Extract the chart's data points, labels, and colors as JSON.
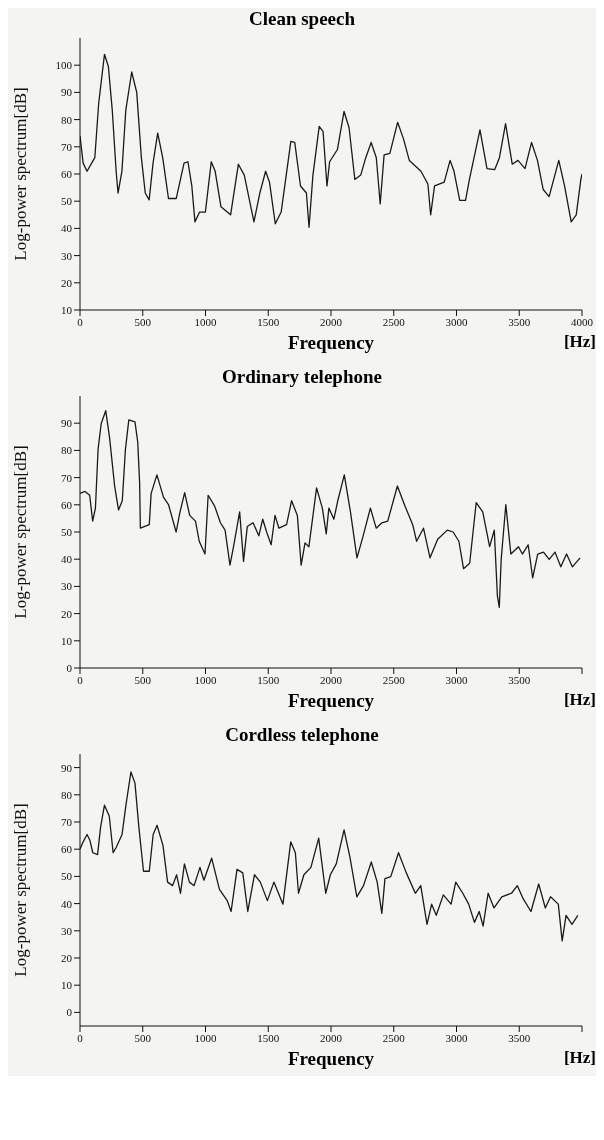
{
  "chart_data": [
    {
      "type": "line",
      "title": "Clean speech",
      "xlabel": "Frequency",
      "ylabel": "Log-power spectrum[dB]",
      "annotations": [
        "[Hz]"
      ],
      "marker": "none",
      "line_style": "solid",
      "grid": false,
      "xlim": [
        0,
        4000
      ],
      "xticks": [
        0,
        500,
        1000,
        1500,
        2000,
        2500,
        3000,
        3500,
        4000
      ],
      "ylim": [
        10,
        110
      ],
      "yticks": [
        10,
        20,
        30,
        40,
        50,
        60,
        70,
        80,
        90,
        100
      ],
      "series": [
        {
          "color": "#1a1a1a",
          "x": [
            0,
            25,
            56,
            93,
            118,
            149,
            195,
            226,
            257,
            288,
            303,
            334,
            365,
            412,
            452,
            489,
            520,
            551,
            582,
            619,
            659,
            705,
            767,
            829,
            860,
            891,
            916,
            953,
            999,
            1046,
            1077,
            1123,
            1200,
            1262,
            1309,
            1386,
            1433,
            1479,
            1510,
            1556,
            1603,
            1680,
            1711,
            1757,
            1804,
            1825,
            1856,
            1906,
            1937,
            1968,
            1989,
            2051,
            2104,
            2144,
            2190,
            2237,
            2277,
            2320,
            2361,
            2392,
            2423,
            2469,
            2531,
            2577,
            2624,
            2717,
            2772,
            2794,
            2825,
            2902,
            2949,
            2980,
            3026,
            3072,
            3103,
            3187,
            3243,
            3304,
            3342,
            3391,
            3444,
            3490,
            3546,
            3598,
            3645,
            3691,
            3738,
            3815,
            3861,
            3914,
            3954,
            3991,
            4000
          ],
          "values": [
            74,
            64,
            61,
            64,
            66,
            86,
            104,
            99.5,
            83.5,
            61,
            53,
            61,
            83.5,
            97.5,
            90,
            66,
            53,
            50.5,
            64,
            75,
            66,
            51,
            51,
            64,
            64.5,
            55.6,
            42.4,
            46,
            46,
            64.5,
            61,
            48,
            45,
            63.6,
            59.6,
            42.4,
            53,
            61,
            57,
            41.7,
            46,
            72,
            71.6,
            55.6,
            53,
            40.4,
            59.6,
            77.5,
            75.6,
            55.6,
            64.5,
            69,
            83,
            77,
            58,
            59.6,
            66,
            71.6,
            66,
            49,
            67,
            67.6,
            79,
            73,
            65,
            61,
            56.3,
            45,
            55.6,
            57,
            65,
            61,
            50.3,
            50.3,
            58,
            76.2,
            62,
            61.6,
            66,
            78.5,
            63.6,
            65,
            62,
            71.6,
            65,
            54.3,
            51.7,
            65,
            55.6,
            42.4,
            45,
            58,
            60
          ]
        }
      ]
    },
    {
      "type": "line",
      "title": "Ordinary telephone",
      "xlabel": "Frequency",
      "ylabel": "Log-power spectrum[dB]",
      "annotations": [
        "[Hz]"
      ],
      "marker": "none",
      "line_style": "solid",
      "grid": false,
      "xlim": [
        0,
        4000
      ],
      "xticks": [
        0,
        500,
        1000,
        1500,
        2000,
        2500,
        3000,
        3500,
        {
          "value": 4000,
          "label": null
        }
      ],
      "ylim": [
        0,
        100
      ],
      "yticks": [
        0,
        10,
        20,
        30,
        40,
        50,
        60,
        70,
        80,
        90
      ],
      "series": [
        {
          "color": "#1a1a1a",
          "x": [
            0,
            40,
            77,
            101,
            123,
            144,
            169,
            205,
            236,
            276,
            307,
            337,
            362,
            389,
            438,
            460,
            475,
            481,
            552,
            567,
            613,
            665,
            705,
            766,
            797,
            834,
            874,
            920,
            950,
            996,
            1021,
            1073,
            1119,
            1156,
            1195,
            1226,
            1272,
            1303,
            1333,
            1379,
            1425,
            1456,
            1487,
            1523,
            1554,
            1585,
            1646,
            1686,
            1732,
            1762,
            1793,
            1824,
            1885,
            1931,
            1962,
            1983,
            2023,
            2054,
            2106,
            2155,
            2207,
            2253,
            2314,
            2360,
            2406,
            2452,
            2529,
            2590,
            2651,
            2682,
            2737,
            2789,
            2850,
            2927,
            2973,
            3019,
            3056,
            3105,
            3157,
            3209,
            3264,
            3301,
            3326,
            3341,
            3356,
            3393,
            3433,
            3494,
            3525,
            3571,
            3607,
            3647,
            3693,
            3739,
            3785,
            3831,
            3877,
            3923,
            3985
          ],
          "values": [
            64.2,
            64.9,
            63.5,
            54,
            58.8,
            80.4,
            89.9,
            94.6,
            84.5,
            66.9,
            58.1,
            61.5,
            80.4,
            91.2,
            90.5,
            83.1,
            68.2,
            51.4,
            52.7,
            64.2,
            71,
            62.8,
            60.1,
            50,
            57.4,
            64.5,
            56.1,
            54,
            46.6,
            41.9,
            63.5,
            59.5,
            53.4,
            50.7,
            37.8,
            45.3,
            57.4,
            39.2,
            52,
            53.4,
            48.6,
            54.7,
            50,
            45.3,
            56.1,
            51.4,
            52.7,
            61.5,
            56.1,
            37.8,
            46,
            44.6,
            66.2,
            58.8,
            49.3,
            58.8,
            54.7,
            61.5,
            71,
            57.4,
            40.5,
            48,
            58.8,
            51.4,
            53.4,
            54,
            66.9,
            59.5,
            52.7,
            46.6,
            51.4,
            40.5,
            47.3,
            50.7,
            50,
            46.6,
            36.5,
            38.5,
            60.8,
            57.4,
            44.6,
            50.7,
            26.4,
            22.3,
            39.9,
            60.1,
            41.9,
            44.6,
            41.9,
            45.3,
            33.1,
            41.9,
            42.6,
            39.9,
            42.6,
            37.2,
            41.9,
            37.2,
            40.5
          ]
        }
      ]
    },
    {
      "type": "line",
      "title": "Cordless telephone",
      "xlabel": "Frequency",
      "ylabel": "Log-power spectrum[dB]",
      "annotations": [
        "[Hz]"
      ],
      "marker": "none",
      "line_style": "solid",
      "grid": false,
      "xlim": [
        0,
        4000
      ],
      "xticks": [
        0,
        500,
        1000,
        1500,
        2000,
        2500,
        3000,
        3500,
        {
          "value": 4000,
          "label": null
        }
      ],
      "ylim": [
        -5,
        95
      ],
      "yticks": [
        0,
        10,
        20,
        30,
        40,
        50,
        60,
        70,
        80,
        90
      ],
      "series": [
        {
          "color": "#1a1a1a",
          "x": [
            0,
            25,
            56,
            78,
            102,
            140,
            164,
            195,
            233,
            264,
            289,
            335,
            366,
            406,
            438,
            469,
            506,
            552,
            583,
            614,
            661,
            698,
            738,
            770,
            801,
            832,
            872,
            909,
            956,
            987,
            1049,
            1111,
            1173,
            1204,
            1251,
            1297,
            1337,
            1390,
            1437,
            1493,
            1545,
            1617,
            1679,
            1716,
            1741,
            1784,
            1840,
            1902,
            1958,
            1995,
            2042,
            2104,
            2150,
            2206,
            2259,
            2321,
            2368,
            2405,
            2430,
            2476,
            2538,
            2600,
            2672,
            2715,
            2765,
            2802,
            2839,
            2895,
            2957,
            2994,
            3050,
            3097,
            3143,
            3181,
            3212,
            3252,
            3299,
            3361,
            3438,
            3485,
            3531,
            3593,
            3655,
            3708,
            3749,
            3811,
            3842,
            3873,
            3920,
            3967
          ],
          "values": [
            60,
            62.7,
            65.4,
            63.4,
            58.7,
            58,
            68.1,
            76.2,
            72.2,
            58.7,
            60.7,
            65.4,
            76.2,
            88.4,
            84.3,
            68.1,
            51.9,
            51.9,
            65.4,
            68.8,
            61.4,
            47.9,
            46.6,
            50.6,
            43.8,
            54.6,
            47.9,
            46.6,
            53.3,
            48.6,
            56.7,
            45.2,
            41.1,
            37.1,
            52.6,
            51.3,
            37.1,
            50.6,
            47.9,
            41.1,
            47.9,
            39.8,
            62.7,
            58.7,
            43.8,
            50.6,
            53.3,
            64.1,
            43.8,
            50.6,
            54.6,
            67.1,
            57.3,
            42.5,
            46.6,
            55.3,
            47.9,
            36.4,
            49.2,
            49.9,
            58.7,
            51.3,
            43.8,
            46.6,
            32.4,
            39.8,
            35.7,
            43.2,
            39.8,
            47.9,
            43.8,
            39.8,
            33.1,
            37.1,
            31.7,
            43.8,
            38.4,
            42.5,
            43.8,
            46.6,
            41.8,
            37.1,
            47.2,
            38.4,
            42.5,
            39.8,
            26.3,
            35.7,
            32.4,
            35.7
          ]
        }
      ]
    }
  ]
}
